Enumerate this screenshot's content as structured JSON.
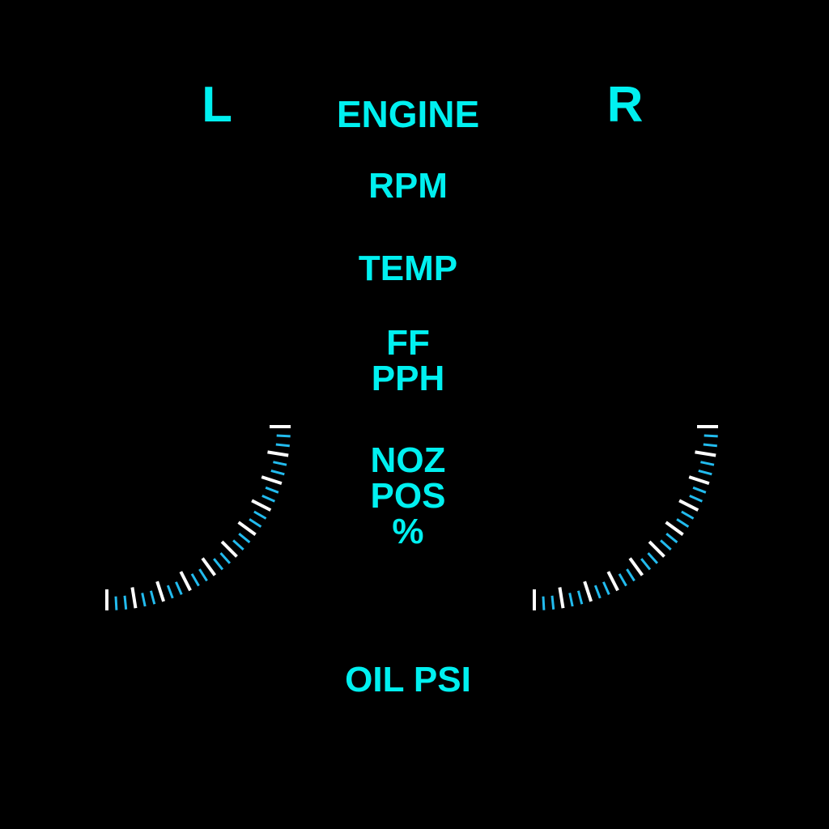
{
  "panel": {
    "title": "ENGINE",
    "left_label": "L",
    "right_label": "R",
    "rows": {
      "rpm": "RPM",
      "temp": "TEMP",
      "ff_line1": "FF",
      "ff_line2": "PPH",
      "noz_line1": "NOZ",
      "noz_line2": "POS",
      "noz_line3": "%",
      "oil": "OIL PSI"
    }
  },
  "gauges": [
    {
      "name": "left-nozzle-scale",
      "major_ticks": 10,
      "minor_per_major": 2
    },
    {
      "name": "right-nozzle-scale",
      "major_ticks": 10,
      "minor_per_major": 2
    }
  ],
  "colors": {
    "label": "#00f0f0",
    "major_tick": "#ffffff",
    "minor_tick": "#22bbee",
    "background": "#000000"
  }
}
